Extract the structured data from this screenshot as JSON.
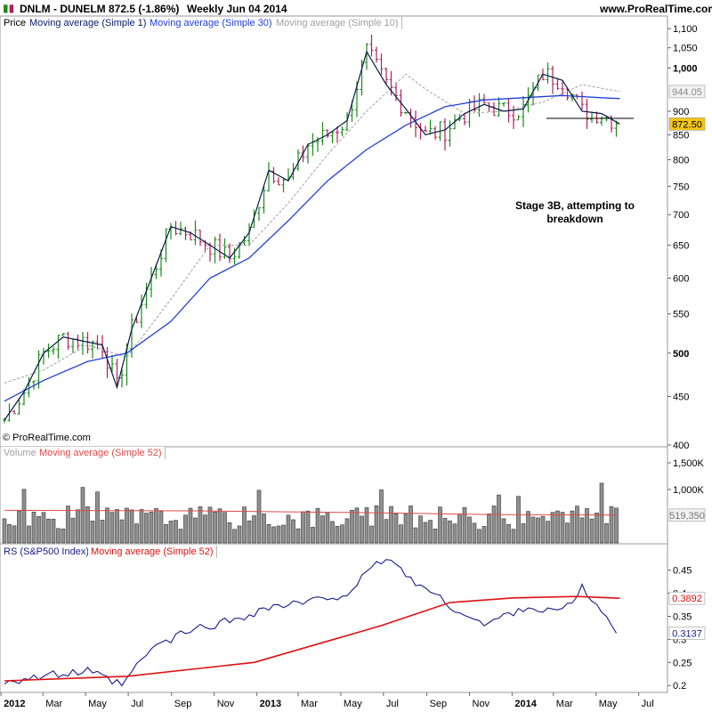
{
  "header": {
    "symbol": "DNLM - DUNELM",
    "quote": "872.5 (-1.86%)",
    "period": "Weekly  Jun 04 2014",
    "website": "www.ProRealTime.com"
  },
  "price_panel": {
    "tab_price": "Price",
    "tab_ma1": "Moving average (Simple 1)",
    "tab_ma30": "Moving average (Simple 30)",
    "tab_ma10": "Moving average (Simple 10)",
    "annotation": "Stage 3B, attempting to breakdown",
    "copyright": "© ProRealTime.com",
    "last_price_tag": "872.50",
    "ma10_tag": "944.05"
  },
  "volume_panel": {
    "tab_volume": "Volume",
    "tab_ma52": "Moving average (Simple 52)",
    "ma_tag": "519,350"
  },
  "rs_panel": {
    "tab_rs": "RS (S&P500 Index)",
    "tab_ma52": "Moving average (Simple 52)",
    "ma_tag": "0.3892",
    "rs_tag": "0.3137"
  },
  "colors": {
    "up_bar": "#1a8a1a",
    "down_bar": "#b0205a",
    "ma1": "#0a1a4a",
    "ma30": "#1f3fd8",
    "ma10": "#a0a0a0",
    "volume_bar": "#909090",
    "volume_ma": "#e04a4a",
    "rs_line": "#1a1a8c",
    "rs_ma": "#e01010",
    "last_price_bg": "#f5c518"
  },
  "chart_data": [
    {
      "type": "line",
      "title": "DNLM - DUNELM",
      "y_scale": "log",
      "ylim": [
        400,
        1110
      ],
      "yticks": [
        "400",
        "450",
        "500",
        "550",
        "600",
        "650",
        "700",
        "750",
        "800",
        "850",
        "900",
        "1,000",
        "1,050",
        "1,100"
      ],
      "x_tick_labels": [
        "2012",
        "Mar",
        "May",
        "Jul",
        "Sep",
        "Nov",
        "2013",
        "Mar",
        "May",
        "Jul",
        "Sep",
        "Nov",
        "2014",
        "Mar",
        "May",
        "Jul"
      ],
      "x_start": "2012-01-06",
      "weeks": 126,
      "series": [
        {
          "name": "Moving average (Simple 1)",
          "x": [
            "2012-01-06",
            "2012-02-03",
            "2012-03-02",
            "2012-03-30",
            "2012-04-27",
            "2012-05-25",
            "2012-06-15",
            "2012-07-06",
            "2012-08-03",
            "2012-08-31",
            "2012-09-28",
            "2012-10-26",
            "2012-11-23",
            "2012-12-21",
            "2013-01-18",
            "2013-02-15",
            "2013-03-15",
            "2013-04-12",
            "2013-05-10",
            "2013-06-07",
            "2013-07-05",
            "2013-08-02",
            "2013-08-30",
            "2013-09-27",
            "2013-10-25",
            "2013-11-22",
            "2013-12-20",
            "2014-01-17",
            "2014-02-14",
            "2014-03-14",
            "2014-04-11",
            "2014-05-09",
            "2014-06-04"
          ],
          "values": [
            425,
            455,
            500,
            520,
            515,
            510,
            460,
            530,
            600,
            680,
            670,
            650,
            630,
            670,
            780,
            760,
            830,
            850,
            880,
            1040,
            960,
            905,
            850,
            860,
            895,
            915,
            900,
            905,
            985,
            970,
            900,
            895,
            872.5
          ]
        },
        {
          "name": "Moving average (Simple 30)",
          "x": [
            "2012-01-06",
            "2012-03-02",
            "2012-05-04",
            "2012-06-29",
            "2012-08-31",
            "2012-10-26",
            "2012-12-21",
            "2013-02-15",
            "2013-04-12",
            "2013-06-07",
            "2013-08-02",
            "2013-09-27",
            "2013-11-22",
            "2014-01-17",
            "2014-03-14",
            "2014-05-09",
            "2014-06-04"
          ],
          "values": [
            445,
            468,
            490,
            500,
            540,
            600,
            630,
            690,
            760,
            820,
            870,
            910,
            925,
            930,
            935,
            930,
            928
          ]
        },
        {
          "name": "Moving average (Simple 10)",
          "x": [
            "2012-01-06",
            "2012-03-02",
            "2012-05-04",
            "2012-06-29",
            "2012-08-31",
            "2012-10-26",
            "2012-12-21",
            "2013-02-15",
            "2013-04-12",
            "2013-06-07",
            "2013-08-02",
            "2013-08-30",
            "2013-10-25",
            "2013-12-20",
            "2014-02-14",
            "2014-04-11",
            "2014-06-04"
          ],
          "values": [
            465,
            480,
            510,
            495,
            570,
            650,
            650,
            720,
            810,
            900,
            985,
            950,
            895,
            900,
            920,
            960,
            944.05
          ]
        }
      ],
      "last_value": 872.5
    },
    {
      "type": "bar",
      "title": "Volume",
      "ylim": [
        0,
        1750000
      ],
      "yticks": [
        "1,000K",
        "1,500K"
      ],
      "series": [
        {
          "name": "Volume"
        },
        {
          "name": "Moving average (Simple 52)",
          "last_value": 519350
        }
      ]
    },
    {
      "type": "line",
      "title": "RS (S&P500 Index)",
      "ylim": [
        0.185,
        0.49
      ],
      "yticks": [
        "0.2",
        "0.25",
        "0.3",
        "0.35",
        "0.4",
        "0.45"
      ],
      "series": [
        {
          "name": "RS (S&P500 Index)",
          "x": [
            "2012-01-06",
            "2012-03-02",
            "2012-05-04",
            "2012-06-22",
            "2012-08-03",
            "2012-09-28",
            "2012-11-23",
            "2013-01-18",
            "2013-03-15",
            "2013-05-10",
            "2013-07-05",
            "2013-08-02",
            "2013-09-27",
            "2013-11-22",
            "2014-01-17",
            "2014-03-14",
            "2014-04-11",
            "2014-06-04"
          ],
          "values": [
            0.21,
            0.22,
            0.23,
            0.2,
            0.28,
            0.32,
            0.34,
            0.37,
            0.38,
            0.4,
            0.48,
            0.44,
            0.38,
            0.33,
            0.37,
            0.36,
            0.41,
            0.3137
          ]
        },
        {
          "name": "Moving average (Simple 52)",
          "x": [
            "2012-01-06",
            "2012-06-29",
            "2012-12-28",
            "2013-06-28",
            "2013-10-04",
            "2014-01-03",
            "2014-04-04",
            "2014-06-04"
          ],
          "values": [
            0.21,
            0.22,
            0.25,
            0.33,
            0.38,
            0.39,
            0.393,
            0.3892
          ]
        }
      ]
    }
  ]
}
